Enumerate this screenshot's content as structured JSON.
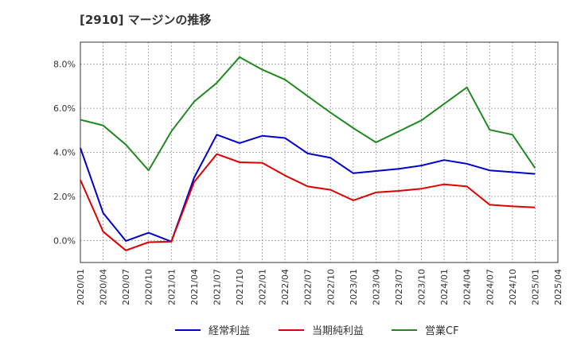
{
  "chart_data": {
    "type": "line",
    "title": "[2910]  マージンの推移",
    "x": [
      "2020/01",
      "2020/04",
      "2020/07",
      "2020/10",
      "2021/01",
      "2021/04",
      "2021/07",
      "2021/10",
      "2022/01",
      "2022/04",
      "2022/07",
      "2022/10",
      "2023/01",
      "2023/04",
      "2023/07",
      "2023/10",
      "2024/01",
      "2024/04",
      "2024/07",
      "2024/10",
      "2025/01",
      "2025/04"
    ],
    "yticks": [
      0.0,
      2.0,
      4.0,
      6.0,
      8.0
    ],
    "ytick_labels": [
      "0.0%",
      "2.0%",
      "4.0%",
      "6.0%",
      "8.0%"
    ],
    "ylim": [
      -1.0,
      9.0
    ],
    "grid": true,
    "legend_position": "bottom",
    "series": [
      {
        "name": "経常利益",
        "color": "#0000cc",
        "values": [
          4.2,
          1.25,
          -0.02,
          0.35,
          -0.05,
          2.85,
          4.8,
          4.42,
          4.75,
          4.65,
          3.95,
          3.75,
          3.05,
          3.15,
          3.25,
          3.4,
          3.65,
          3.48,
          3.18,
          3.1,
          3.02,
          null
        ]
      },
      {
        "name": "当期純利益",
        "color": "#dd0000",
        "values": [
          2.75,
          0.4,
          -0.45,
          -0.08,
          -0.05,
          2.65,
          3.92,
          3.55,
          3.52,
          2.95,
          2.45,
          2.3,
          1.82,
          2.18,
          2.25,
          2.35,
          2.55,
          2.45,
          1.62,
          1.55,
          1.5,
          null
        ]
      },
      {
        "name": "営業CF",
        "color": "#228822",
        "values": [
          5.48,
          5.22,
          4.35,
          3.18,
          4.95,
          6.3,
          7.15,
          8.32,
          7.75,
          7.3,
          6.55,
          5.8,
          5.1,
          4.45,
          4.95,
          5.45,
          6.2,
          6.95,
          5.02,
          4.8,
          3.28,
          null
        ]
      }
    ]
  }
}
